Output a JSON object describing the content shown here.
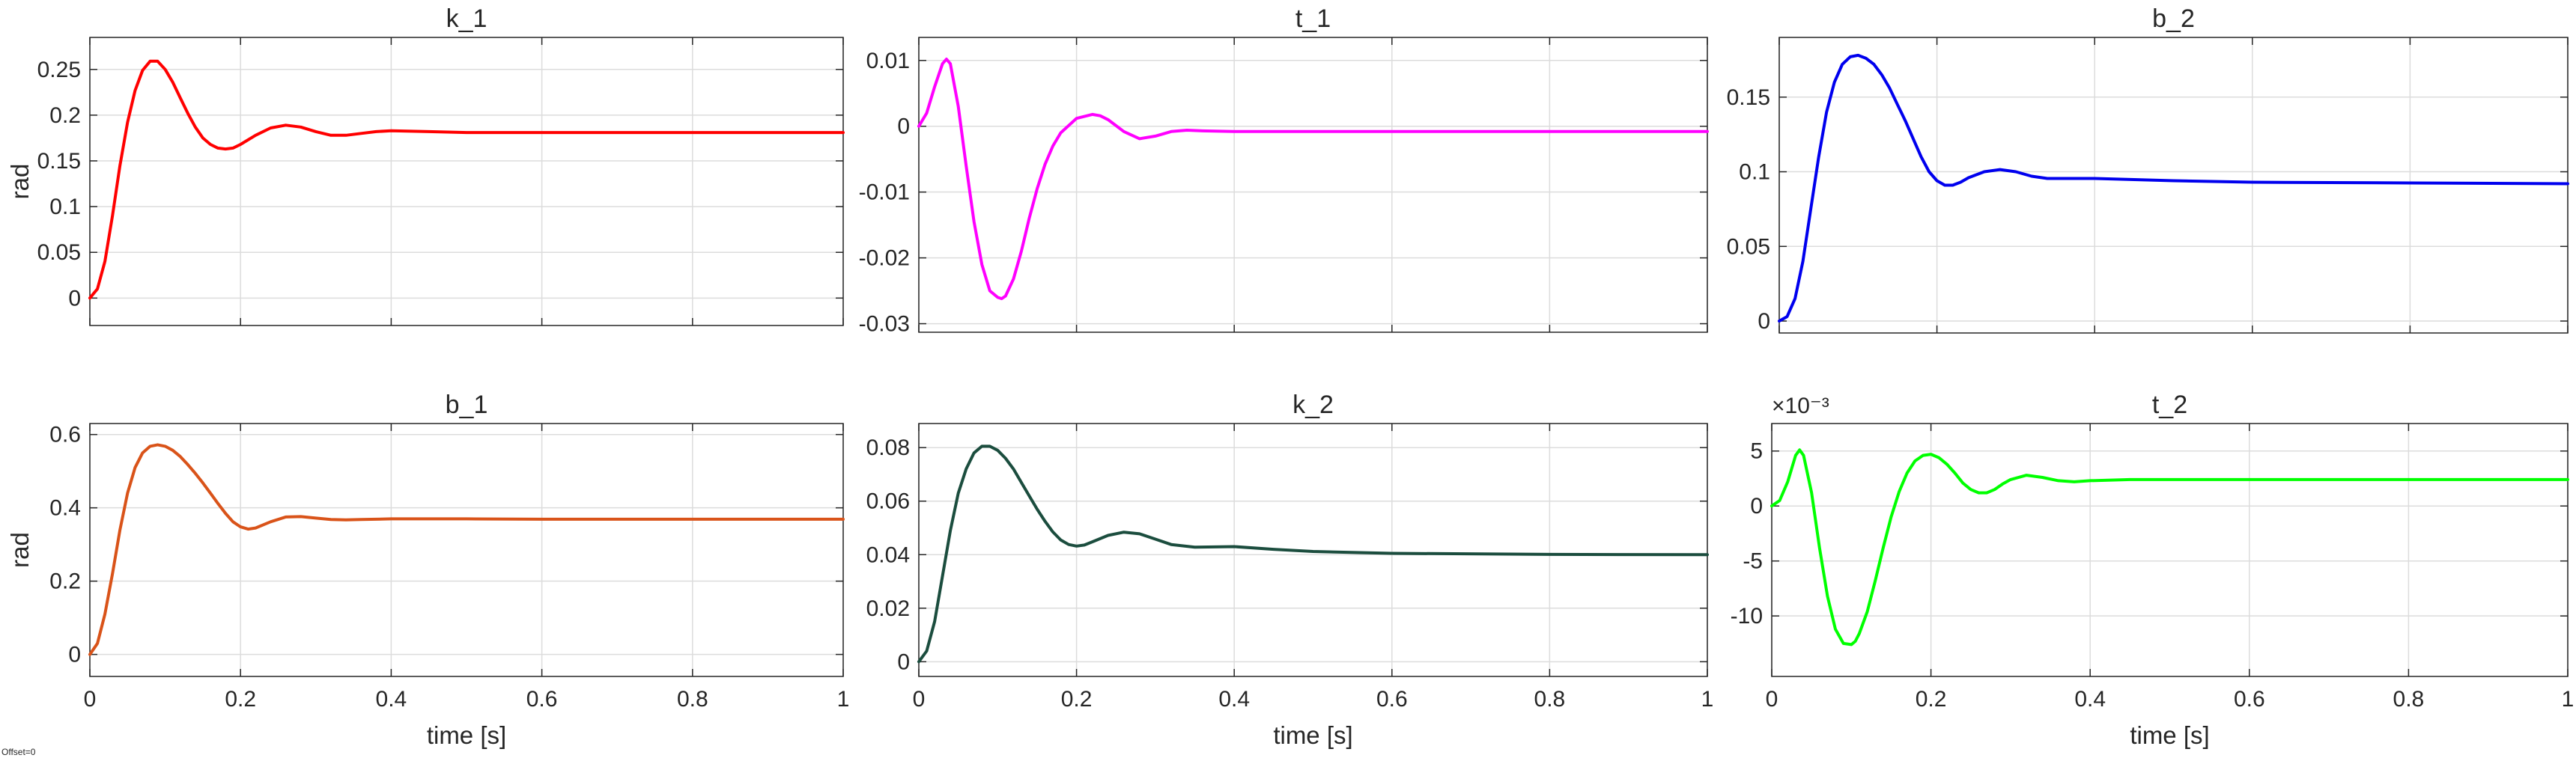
{
  "figure": {
    "offset_label": "Offset=0"
  },
  "chart_data": [
    {
      "type": "line",
      "title": "k_1",
      "xlabel": "",
      "ylabel": "rad",
      "xlim": [
        0,
        1
      ],
      "ylim": [
        -0.03,
        0.285
      ],
      "xticks": [
        0,
        0.2,
        0.4,
        0.6,
        0.8,
        1
      ],
      "xtick_labels_shown": false,
      "yticks": [
        0,
        0.05,
        0.1,
        0.15,
        0.2,
        0.25
      ],
      "ytick_labels": [
        "0",
        "0.05",
        "0.1",
        "0.15",
        "0.2",
        "0.25"
      ],
      "exponent_label": "",
      "grid": true,
      "series": [
        {
          "color": "#ff0000",
          "x": [
            0,
            0.01,
            0.02,
            0.03,
            0.04,
            0.05,
            0.06,
            0.07,
            0.08,
            0.09,
            0.1,
            0.11,
            0.12,
            0.13,
            0.14,
            0.15,
            0.16,
            0.17,
            0.18,
            0.19,
            0.2,
            0.22,
            0.24,
            0.26,
            0.28,
            0.3,
            0.32,
            0.34,
            0.36,
            0.38,
            0.4,
            0.45,
            0.5,
            0.6,
            0.7,
            0.8,
            0.9,
            1.0
          ],
          "y": [
            0,
            0.01,
            0.04,
            0.09,
            0.145,
            0.192,
            0.227,
            0.249,
            0.259,
            0.259,
            0.25,
            0.236,
            0.219,
            0.202,
            0.187,
            0.175,
            0.168,
            0.164,
            0.163,
            0.164,
            0.168,
            0.178,
            0.186,
            0.189,
            0.187,
            0.182,
            0.178,
            0.178,
            0.18,
            0.182,
            0.183,
            0.182,
            0.181,
            0.181,
            0.181,
            0.181,
            0.181,
            0.181
          ]
        }
      ]
    },
    {
      "type": "line",
      "title": "t_1",
      "xlabel": "",
      "ylabel": "",
      "xlim": [
        0,
        1
      ],
      "ylim": [
        -0.0313,
        0.0135
      ],
      "xticks": [
        0,
        0.2,
        0.4,
        0.6,
        0.8,
        1
      ],
      "xtick_labels_shown": false,
      "yticks": [
        -0.03,
        -0.02,
        -0.01,
        0,
        0.01
      ],
      "ytick_labels": [
        "-0.03",
        "-0.02",
        "-0.01",
        "0",
        "0.01"
      ],
      "exponent_label": "",
      "grid": true,
      "series": [
        {
          "color": "#ff00ff",
          "x": [
            0,
            0.01,
            0.02,
            0.03,
            0.035,
            0.04,
            0.05,
            0.06,
            0.07,
            0.08,
            0.09,
            0.1,
            0.105,
            0.11,
            0.12,
            0.13,
            0.14,
            0.15,
            0.16,
            0.17,
            0.18,
            0.2,
            0.22,
            0.23,
            0.24,
            0.26,
            0.28,
            0.3,
            0.32,
            0.34,
            0.36,
            0.4,
            0.5,
            0.6,
            0.8,
            1.0
          ],
          "y": [
            0,
            0.002,
            0.006,
            0.0095,
            0.0102,
            0.0095,
            0.003,
            -0.006,
            -0.0145,
            -0.021,
            -0.025,
            -0.026,
            -0.0262,
            -0.0258,
            -0.0232,
            -0.019,
            -0.014,
            -0.0095,
            -0.0058,
            -0.003,
            -0.001,
            0.0012,
            0.0018,
            0.0016,
            0.001,
            -0.0008,
            -0.0019,
            -0.0015,
            -0.0008,
            -0.0006,
            -0.0007,
            -0.0008,
            -0.0008,
            -0.0008,
            -0.0008,
            -0.0008
          ]
        }
      ]
    },
    {
      "type": "line",
      "title": "b_2",
      "xlabel": "",
      "ylabel": "",
      "xlim": [
        0,
        1
      ],
      "ylim": [
        -0.008,
        0.19
      ],
      "xticks": [
        0,
        0.2,
        0.4,
        0.6,
        0.8,
        1
      ],
      "xtick_labels_shown": false,
      "yticks": [
        0,
        0.05,
        0.1,
        0.15
      ],
      "ytick_labels": [
        "0",
        "0.05",
        "0.1",
        "0.15"
      ],
      "exponent_label": "",
      "grid": true,
      "series": [
        {
          "color": "#0000ee",
          "x": [
            0,
            0.01,
            0.02,
            0.03,
            0.04,
            0.05,
            0.06,
            0.07,
            0.08,
            0.09,
            0.1,
            0.11,
            0.12,
            0.13,
            0.14,
            0.15,
            0.16,
            0.17,
            0.18,
            0.19,
            0.2,
            0.21,
            0.22,
            0.23,
            0.24,
            0.26,
            0.28,
            0.3,
            0.32,
            0.34,
            0.36,
            0.4,
            0.5,
            0.6,
            0.8,
            1.0
          ],
          "y": [
            0,
            0.003,
            0.015,
            0.04,
            0.075,
            0.11,
            0.14,
            0.16,
            0.172,
            0.177,
            0.178,
            0.176,
            0.172,
            0.165,
            0.156,
            0.145,
            0.134,
            0.122,
            0.11,
            0.1,
            0.094,
            0.091,
            0.091,
            0.093,
            0.096,
            0.1,
            0.1015,
            0.1,
            0.097,
            0.0955,
            0.0955,
            0.0955,
            0.094,
            0.093,
            0.0925,
            0.092
          ]
        }
      ]
    },
    {
      "type": "line",
      "title": "b_1",
      "xlabel": "time [s]",
      "ylabel": "rad",
      "xlim": [
        0,
        1
      ],
      "ylim": [
        -0.06,
        0.63
      ],
      "xticks": [
        0,
        0.2,
        0.4,
        0.6,
        0.8,
        1
      ],
      "xtick_labels_shown": true,
      "xtick_labels": [
        "0",
        "0.2",
        "0.4",
        "0.6",
        "0.8",
        "1"
      ],
      "yticks": [
        0,
        0.2,
        0.4,
        0.6
      ],
      "ytick_labels": [
        "0",
        "0.2",
        "0.4",
        "0.6"
      ],
      "exponent_label": "",
      "grid": true,
      "series": [
        {
          "color": "#d95319",
          "x": [
            0,
            0.01,
            0.02,
            0.03,
            0.04,
            0.05,
            0.06,
            0.07,
            0.08,
            0.09,
            0.1,
            0.11,
            0.12,
            0.13,
            0.14,
            0.15,
            0.16,
            0.17,
            0.18,
            0.19,
            0.2,
            0.21,
            0.22,
            0.24,
            0.26,
            0.28,
            0.3,
            0.32,
            0.34,
            0.36,
            0.4,
            0.5,
            0.6,
            0.8,
            1.0
          ],
          "y": [
            0,
            0.03,
            0.11,
            0.22,
            0.34,
            0.44,
            0.51,
            0.55,
            0.568,
            0.572,
            0.568,
            0.557,
            0.54,
            0.518,
            0.494,
            0.468,
            0.44,
            0.412,
            0.385,
            0.362,
            0.348,
            0.342,
            0.345,
            0.362,
            0.375,
            0.376,
            0.372,
            0.368,
            0.367,
            0.368,
            0.37,
            0.37,
            0.369,
            0.369,
            0.369
          ]
        }
      ]
    },
    {
      "type": "line",
      "title": "k_2",
      "xlabel": "time [s]",
      "ylabel": "",
      "xlim": [
        0,
        1
      ],
      "ylim": [
        -0.0055,
        0.089
      ],
      "xticks": [
        0,
        0.2,
        0.4,
        0.6,
        0.8,
        1
      ],
      "xtick_labels_shown": true,
      "xtick_labels": [
        "0",
        "0.2",
        "0.4",
        "0.6",
        "0.8",
        "1"
      ],
      "yticks": [
        0,
        0.02,
        0.04,
        0.06,
        0.08
      ],
      "ytick_labels": [
        "0",
        "0.02",
        "0.04",
        "0.06",
        "0.08"
      ],
      "exponent_label": "",
      "grid": true,
      "series": [
        {
          "color": "#1b4d3e",
          "x": [
            0,
            0.01,
            0.02,
            0.03,
            0.04,
            0.05,
            0.06,
            0.07,
            0.08,
            0.09,
            0.1,
            0.11,
            0.12,
            0.13,
            0.14,
            0.15,
            0.16,
            0.17,
            0.18,
            0.19,
            0.2,
            0.21,
            0.22,
            0.24,
            0.26,
            0.28,
            0.3,
            0.32,
            0.35,
            0.4,
            0.45,
            0.5,
            0.6,
            0.8,
            1.0
          ],
          "y": [
            0,
            0.004,
            0.015,
            0.032,
            0.049,
            0.063,
            0.072,
            0.078,
            0.0805,
            0.0805,
            0.079,
            0.076,
            0.072,
            0.067,
            0.062,
            0.057,
            0.0525,
            0.0485,
            0.0455,
            0.0438,
            0.0432,
            0.0436,
            0.0448,
            0.0472,
            0.0484,
            0.0478,
            0.0458,
            0.0438,
            0.0428,
            0.043,
            0.042,
            0.0412,
            0.0405,
            0.0401,
            0.04
          ]
        }
      ]
    },
    {
      "type": "line",
      "title": "t_2",
      "xlabel": "time [s]",
      "ylabel": "",
      "xlim": [
        0,
        1
      ],
      "ylim": [
        -15.5,
        7.5
      ],
      "xticks": [
        0,
        0.2,
        0.4,
        0.6,
        0.8,
        1
      ],
      "xtick_labels_shown": true,
      "xtick_labels": [
        "0",
        "0.2",
        "0.4",
        "0.6",
        "0.8",
        "1"
      ],
      "yticks": [
        -10,
        -5,
        0,
        5
      ],
      "ytick_labels": [
        "-10",
        "-5",
        "0",
        "5"
      ],
      "exponent_label": "×10⁻³",
      "grid": true,
      "series": [
        {
          "color": "#00ff00",
          "x": [
            0,
            0.01,
            0.02,
            0.03,
            0.035,
            0.04,
            0.05,
            0.06,
            0.07,
            0.08,
            0.09,
            0.1,
            0.105,
            0.11,
            0.12,
            0.13,
            0.14,
            0.15,
            0.16,
            0.17,
            0.18,
            0.19,
            0.2,
            0.21,
            0.22,
            0.23,
            0.24,
            0.25,
            0.26,
            0.27,
            0.28,
            0.29,
            0.3,
            0.32,
            0.34,
            0.36,
            0.38,
            0.4,
            0.45,
            0.5,
            0.6,
            0.8,
            1.0
          ],
          "y": [
            0,
            0.5,
            2.2,
            4.6,
            5.1,
            4.6,
            1.2,
            -3.8,
            -8.2,
            -11.2,
            -12.5,
            -12.6,
            -12.3,
            -11.6,
            -9.6,
            -6.8,
            -3.8,
            -1.0,
            1.3,
            3.0,
            4.1,
            4.6,
            4.7,
            4.4,
            3.8,
            3.0,
            2.1,
            1.5,
            1.2,
            1.2,
            1.5,
            2.0,
            2.4,
            2.8,
            2.6,
            2.3,
            2.2,
            2.3,
            2.4,
            2.4,
            2.4,
            2.4,
            2.4
          ]
        }
      ]
    }
  ]
}
